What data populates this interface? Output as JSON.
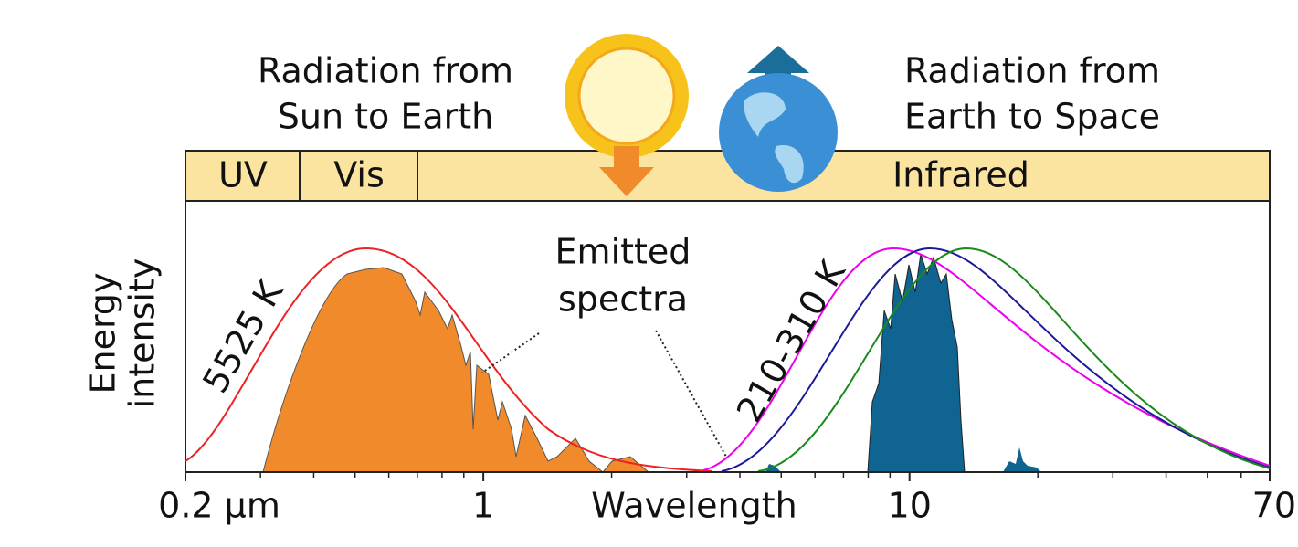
{
  "header": {
    "sun_label": [
      "Radiation from",
      "Sun to Earth"
    ],
    "earth_label": [
      "Radiation from",
      "Earth to Space"
    ]
  },
  "bands": [
    "UV",
    "Vis",
    "Infrared"
  ],
  "y_axis_label": [
    "Energy",
    "intensity"
  ],
  "annotations": {
    "sun_temperature": "5525 K",
    "earth_temperature": "210-310 K",
    "emitted": [
      "Emitted",
      "spectra"
    ]
  },
  "x_axis": {
    "title": "Wavelength",
    "scale": "log",
    "lim": [
      0.2,
      70
    ],
    "ticks": [
      {
        "value": 0.2,
        "label": "0.2 µm"
      },
      1,
      10,
      70
    ],
    "minor_ticks": [
      0.3,
      0.4,
      0.5,
      0.6,
      0.7,
      0.8,
      0.9,
      2,
      3,
      4,
      5,
      6,
      7,
      8,
      9,
      20,
      30,
      40,
      50,
      60
    ]
  }
}
